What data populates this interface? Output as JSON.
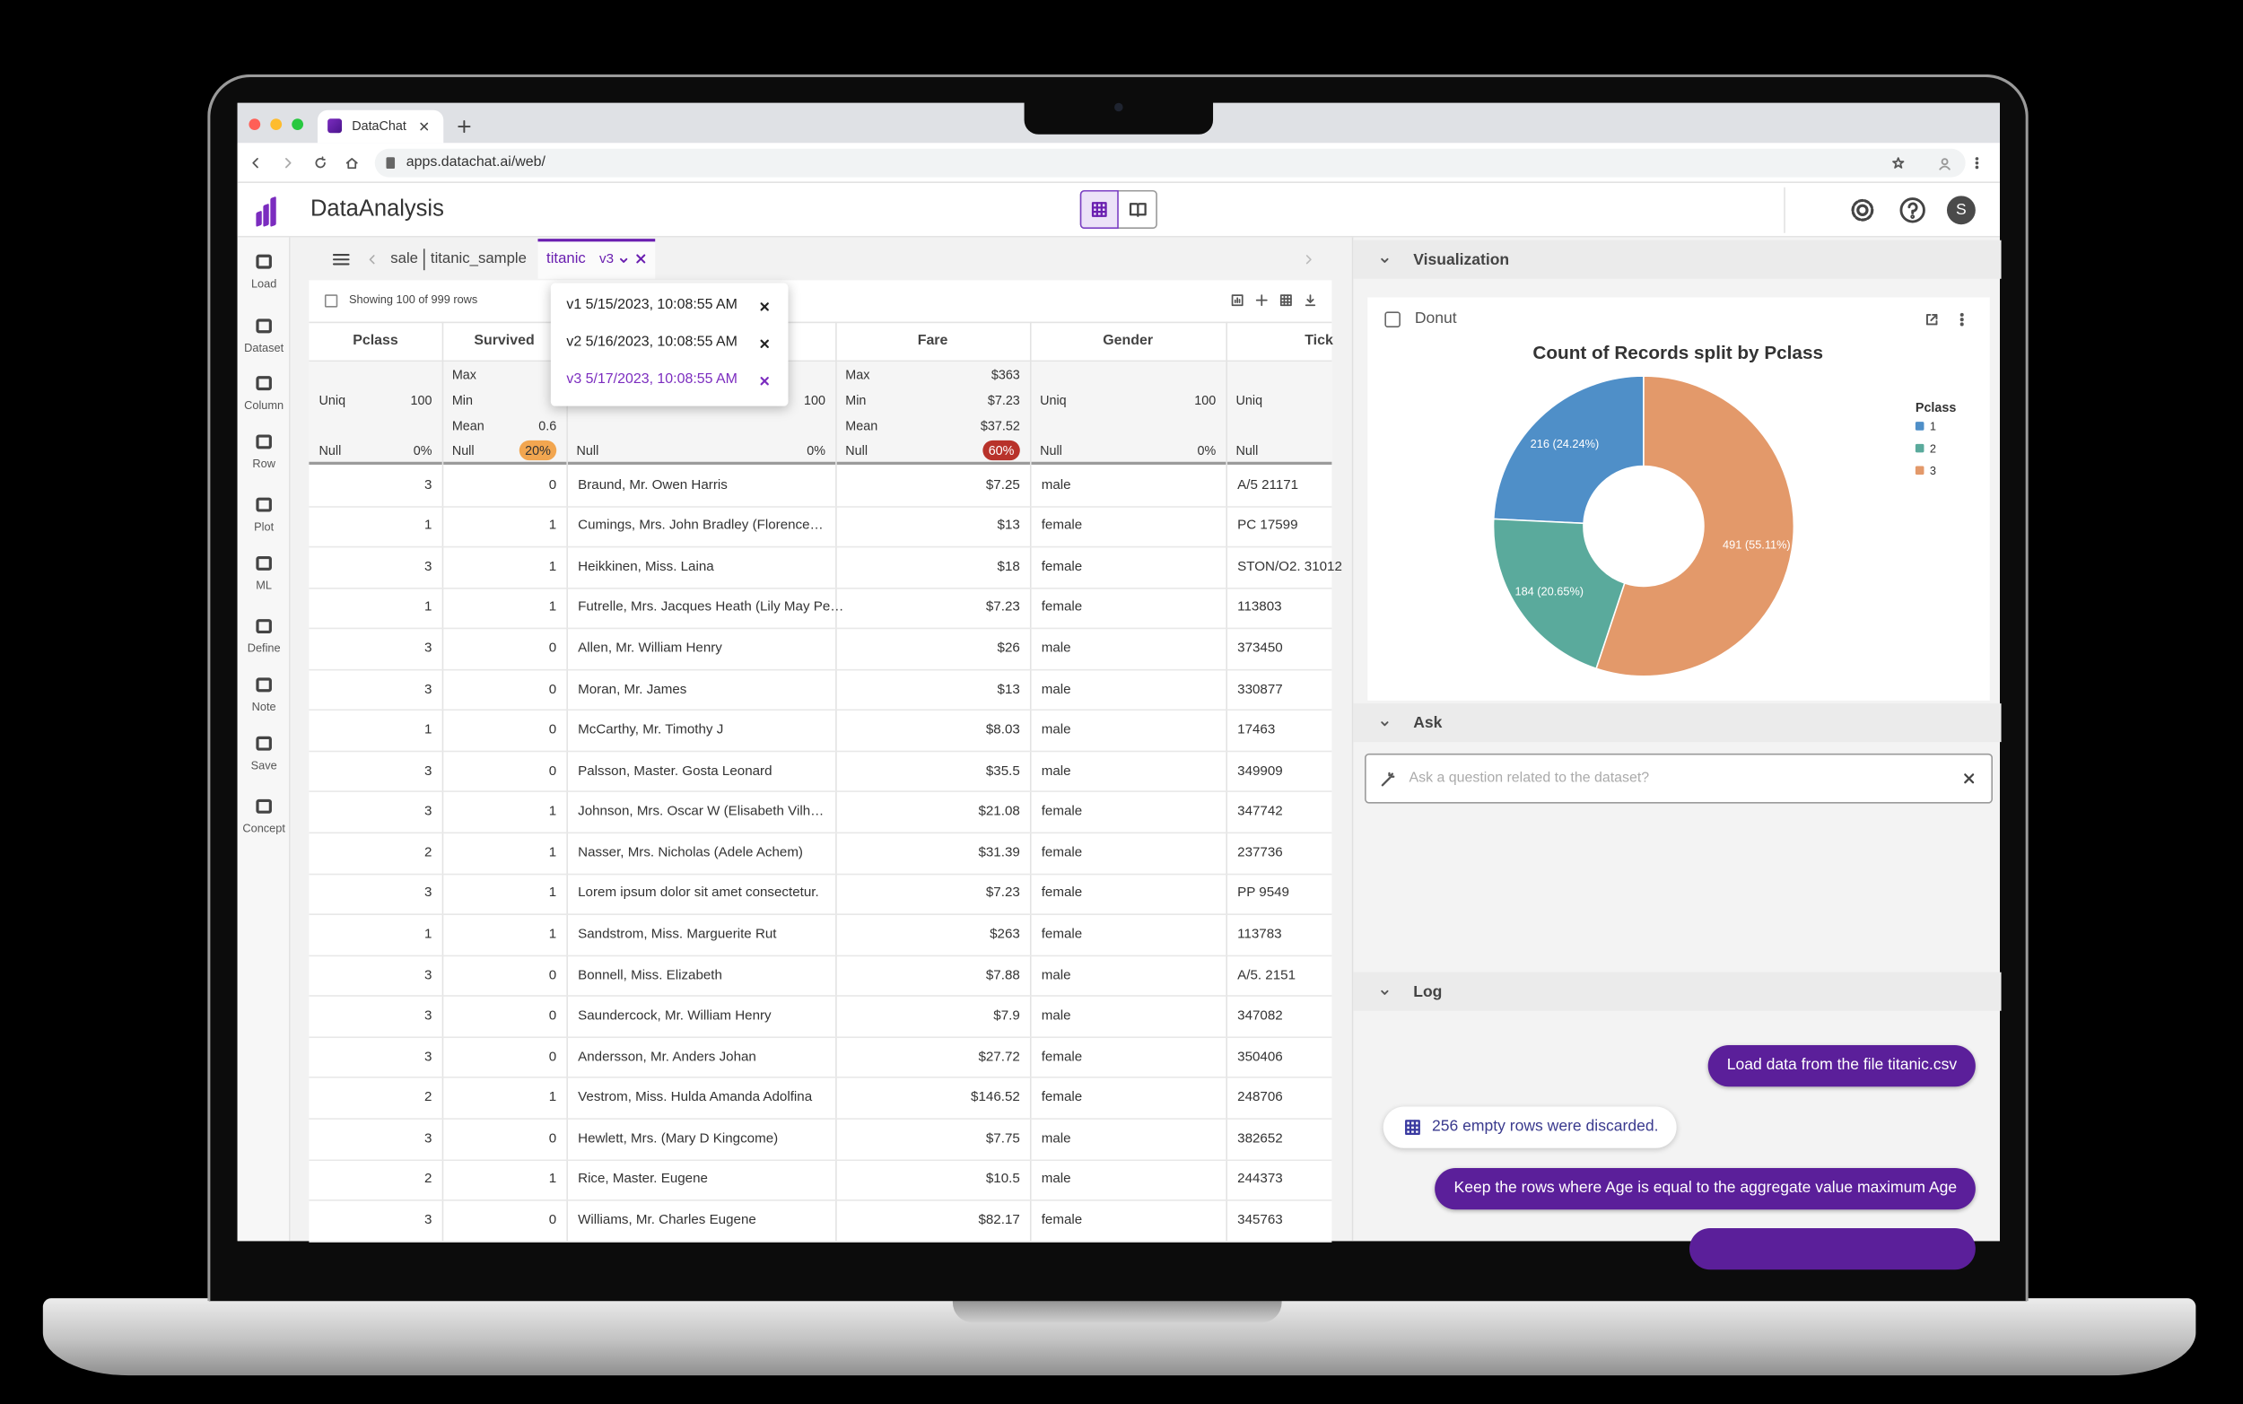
{
  "browser": {
    "tab_title": "DataChat",
    "url": "apps.datachat.ai/web/"
  },
  "app": {
    "title": "DataAnalysis",
    "user_initial": "S"
  },
  "sidebar": [
    "Load",
    "Dataset",
    "Column",
    "Row",
    "Plot",
    "ML",
    "Define",
    "Note",
    "Save",
    "Concept"
  ],
  "breadcrumbs": [
    "sale",
    "titanic_sample"
  ],
  "active_tab": {
    "name": "titanic",
    "version": "v3"
  },
  "versions": [
    "v1 5/15/2023, 10:08:55 AM",
    "v2 5/16/2023, 10:08:55 AM",
    "v3 5/17/2023, 10:08:55 AM"
  ],
  "table": {
    "caption": "Showing 100 of 999 rows",
    "headers": [
      "Pclass",
      "Survived",
      null,
      "Fare",
      "Gender",
      "Tick"
    ],
    "stats": [
      [
        {
          "label": "Uniq",
          "value": "100"
        },
        {
          "label": "Null",
          "value": "0%"
        }
      ],
      [
        {
          "label": "Max"
        },
        {
          "label": "Min"
        },
        {
          "label": "Mean",
          "value": "0.6"
        },
        {
          "label": "Null",
          "value": "20%",
          "badge": "#f2a650"
        }
      ],
      [
        {
          "value": "100"
        },
        {
          "label": "Null",
          "value": "0%"
        }
      ],
      [
        {
          "label": "Max",
          "value": "$363"
        },
        {
          "label": "Min",
          "value": "$7.23"
        },
        {
          "label": "Mean",
          "value": "$37.52"
        },
        {
          "label": "Null",
          "value": "60%",
          "badge": "#b8322a"
        }
      ],
      [
        {
          "label": "Uniq",
          "value": "100"
        },
        {
          "label": "Null",
          "value": "0%"
        }
      ],
      [
        {
          "label": "Uniq"
        },
        {
          "label": "Null"
        }
      ]
    ],
    "rows": [
      [
        3,
        0,
        "Braund, Mr. Owen Harris",
        "$7.25",
        "male",
        "A/5 21171"
      ],
      [
        1,
        1,
        "Cumings, Mrs. John Bradley (Florence…",
        "$13",
        "female",
        "PC 17599"
      ],
      [
        3,
        1,
        "Heikkinen, Miss. Laina",
        "$18",
        "female",
        "STON/O2. 31012"
      ],
      [
        1,
        1,
        "Futrelle, Mrs. Jacques Heath (Lily May Pe…",
        "$7.23",
        "female",
        "113803"
      ],
      [
        3,
        0,
        "Allen, Mr. William Henry",
        "$26",
        "male",
        "373450"
      ],
      [
        3,
        0,
        "Moran, Mr. James",
        "$13",
        "male",
        "330877"
      ],
      [
        1,
        0,
        "McCarthy, Mr. Timothy J",
        "$8.03",
        "male",
        "17463"
      ],
      [
        3,
        0,
        "Palsson, Master. Gosta Leonard",
        "$35.5",
        "male",
        "349909"
      ],
      [
        3,
        1,
        "Johnson, Mrs. Oscar W (Elisabeth Vilh…",
        "$21.08",
        "female",
        "347742"
      ],
      [
        2,
        1,
        "Nasser, Mrs. Nicholas (Adele Achem)",
        "$31.39",
        "female",
        "237736"
      ],
      [
        3,
        1,
        "Lorem ipsum dolor sit amet consectetur.",
        "$7.23",
        "female",
        "PP 9549"
      ],
      [
        1,
        1,
        "Sandstrom, Miss. Marguerite Rut",
        "$263",
        "female",
        "113783"
      ],
      [
        3,
        0,
        "Bonnell, Miss. Elizabeth",
        "$7.88",
        "male",
        "A/5. 2151"
      ],
      [
        3,
        0,
        "Saundercock, Mr. William Henry",
        "$7.9",
        "male",
        "347082"
      ],
      [
        3,
        0,
        "Andersson, Mr. Anders Johan",
        "$27.72",
        "female",
        "350406"
      ],
      [
        2,
        1,
        "Vestrom, Miss. Hulda Amanda Adolfina",
        "$146.52",
        "female",
        "248706"
      ],
      [
        3,
        0,
        "Hewlett, Mrs. (Mary D Kingcome)",
        "$7.75",
        "male",
        "382652"
      ],
      [
        2,
        1,
        "Rice, Master. Eugene",
        "$10.5",
        "male",
        "244373"
      ],
      [
        3,
        0,
        "Williams, Mr. Charles Eugene",
        "$82.17",
        "female",
        "345763"
      ]
    ]
  },
  "panels": {
    "visualization": "Visualization",
    "ask": "Ask",
    "log": "Log"
  },
  "chart_card_label": "Donut",
  "chart_data": {
    "type": "donut",
    "title": "Count of Records split by Pclass",
    "legend_title": "Pclass",
    "categories": [
      "1",
      "2",
      "3"
    ],
    "values": [
      216,
      184,
      491
    ],
    "value_labels": [
      "216 (24.24%)",
      "184 (20.65%)",
      "491 (55.11%)"
    ],
    "colors": [
      "#4f8fc8",
      "#5aaa9c",
      "#e3996a"
    ],
    "legend": "right"
  },
  "ask_placeholder": "Ask a question related to the dataset?",
  "log": [
    {
      "from": "user",
      "text": "Load data from the file titanic.csv"
    },
    {
      "from": "system",
      "text": "256 empty rows were discarded."
    },
    {
      "from": "user",
      "text": "Keep the rows where Age is equal to the aggregate value maximum Age"
    }
  ]
}
